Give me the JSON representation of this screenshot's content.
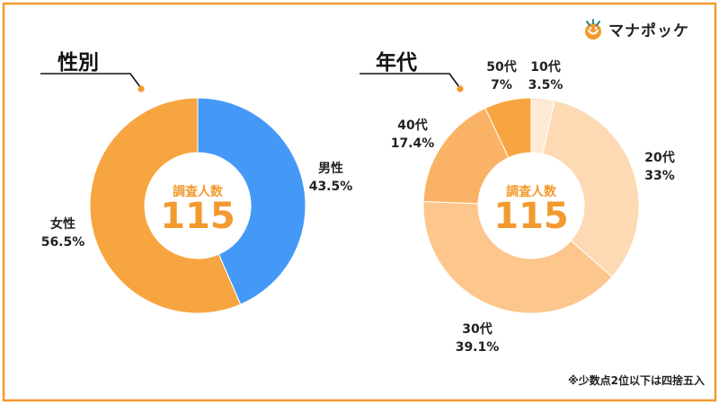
{
  "brand": {
    "name": "マナポッケ",
    "accent": "#f29a2e",
    "border": "#f29a2e"
  },
  "footnote": "※少数点2位以下は四捨五入",
  "chart_data": [
    {
      "type": "donut",
      "title": "性別",
      "center_caption": "調査人数",
      "center_value": "115",
      "series": [
        {
          "label": "男性",
          "value": 43.5,
          "value_label": "43.5%",
          "color": "#4499f7"
        },
        {
          "label": "女性",
          "value": 56.5,
          "value_label": "56.5%",
          "color": "#f7a540"
        }
      ]
    },
    {
      "type": "donut",
      "title": "年代",
      "center_caption": "調査人数",
      "center_value": "115",
      "series": [
        {
          "label": "10代",
          "value": 3.5,
          "value_label": "3.5%",
          "color": "#fde9d6"
        },
        {
          "label": "20代",
          "value": 33,
          "value_label": "33%",
          "color": "#fddab3"
        },
        {
          "label": "30代",
          "value": 39.1,
          "value_label": "39.1%",
          "color": "#fdc68d"
        },
        {
          "label": "40代",
          "value": 17.4,
          "value_label": "17.4%",
          "color": "#fab366"
        },
        {
          "label": "50代",
          "value": 7,
          "value_label": "7%",
          "color": "#f7a540"
        }
      ]
    }
  ]
}
